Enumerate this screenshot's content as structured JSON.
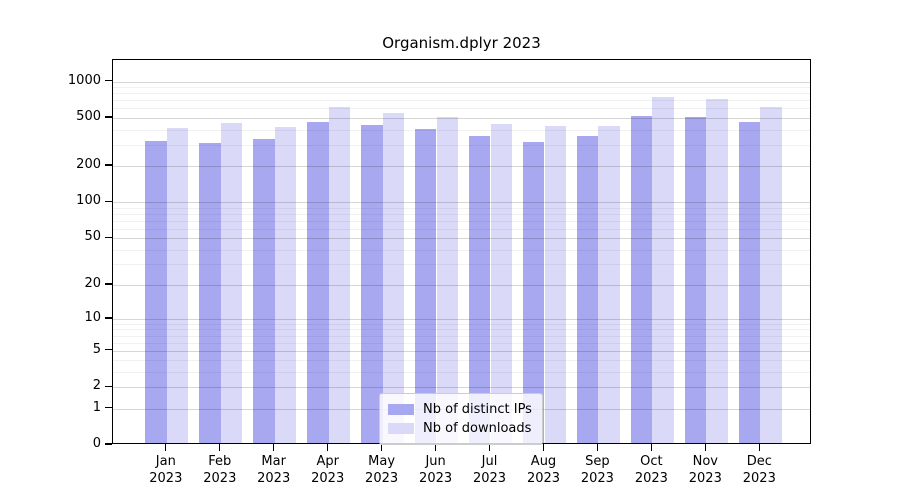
{
  "chart_data": {
    "type": "bar",
    "title": "Organism.dplyr 2023",
    "categories": [
      "Jan",
      "Feb",
      "Mar",
      "Apr",
      "May",
      "Jun",
      "Jul",
      "Aug",
      "Sep",
      "Oct",
      "Nov",
      "Dec"
    ],
    "year_label": "2023",
    "series": [
      {
        "name": "Nb of distinct IPs",
        "color": "#a8a8f0",
        "values": [
          310,
          297,
          322,
          444,
          424,
          390,
          343,
          306,
          339,
          503,
          493,
          450
        ]
      },
      {
        "name": "Nb of downloads",
        "color": "#dadaf8",
        "values": [
          396,
          438,
          408,
          590,
          526,
          490,
          433,
          415,
          411,
          723,
          696,
          595
        ]
      }
    ],
    "yscale": "log1p",
    "ylim": [
      0,
      1480
    ],
    "yticks": [
      0,
      1,
      2,
      5,
      10,
      20,
      50,
      100,
      200,
      500,
      1000
    ],
    "minor_gridlines": [
      3,
      4,
      6,
      7,
      8,
      9,
      30,
      40,
      60,
      70,
      80,
      90,
      300,
      400,
      600,
      700,
      800,
      900
    ],
    "grid": true,
    "legend_position": "lower center",
    "colors": {
      "bar_distinct_ips": "#a8a8f0",
      "bar_downloads": "#dadaf8",
      "grid_major": "#d4d4d4",
      "grid_minor": "#ebebeb",
      "axis": "#000000",
      "background": "#ffffff"
    }
  }
}
